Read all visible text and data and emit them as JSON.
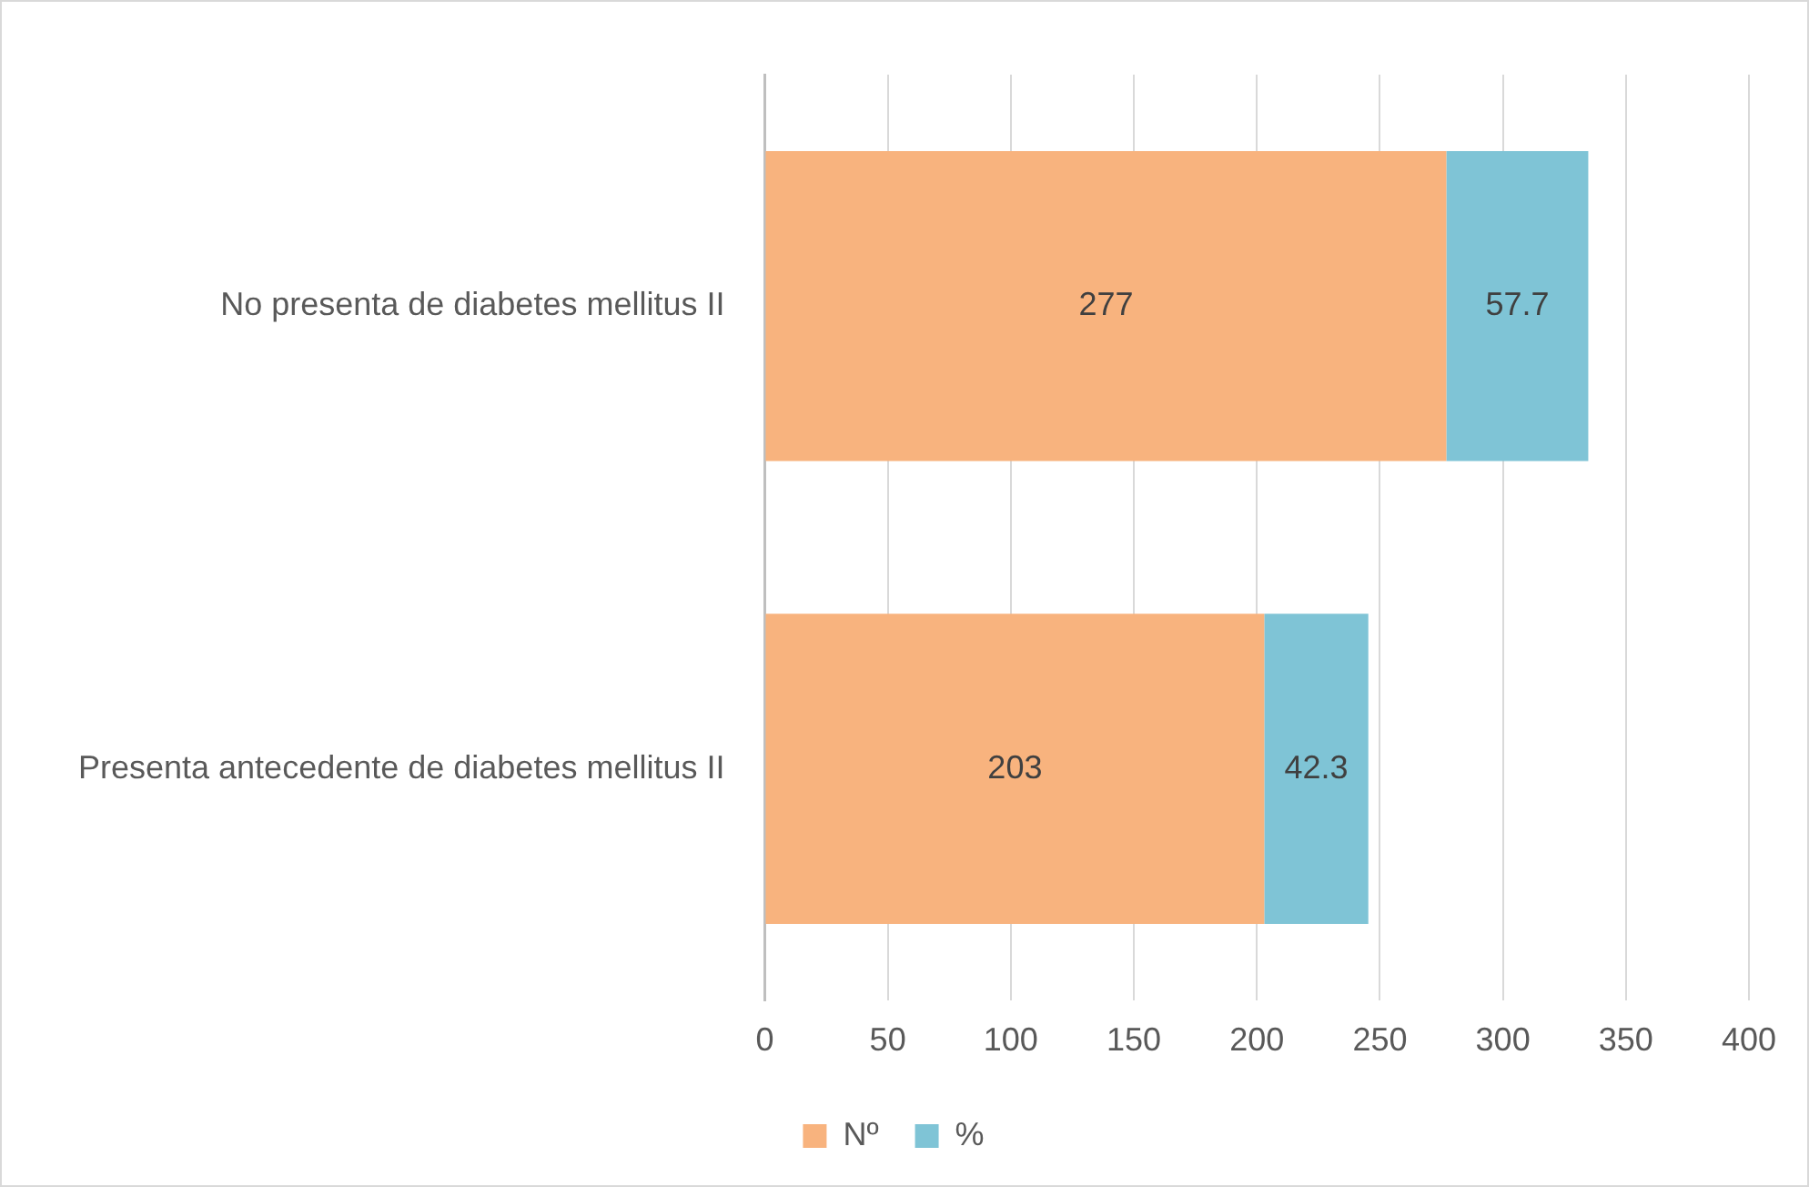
{
  "chart_data": {
    "type": "bar",
    "orientation": "horizontal",
    "stacked": true,
    "categories": [
      "No presenta de diabetes mellitus II",
      "Presenta antecedente de diabetes mellitus II"
    ],
    "series": [
      {
        "name": "Nº",
        "color": "#f8b37e",
        "values": [
          277,
          203
        ]
      },
      {
        "name": "%",
        "color": "#7fc4d6",
        "values": [
          57.7,
          42.3
        ]
      }
    ],
    "xlim": [
      0,
      400
    ],
    "xticks": [
      0,
      50,
      100,
      150,
      200,
      250,
      300,
      350,
      400
    ],
    "grid": "x",
    "legend": "bottom",
    "data_labels": true
  }
}
